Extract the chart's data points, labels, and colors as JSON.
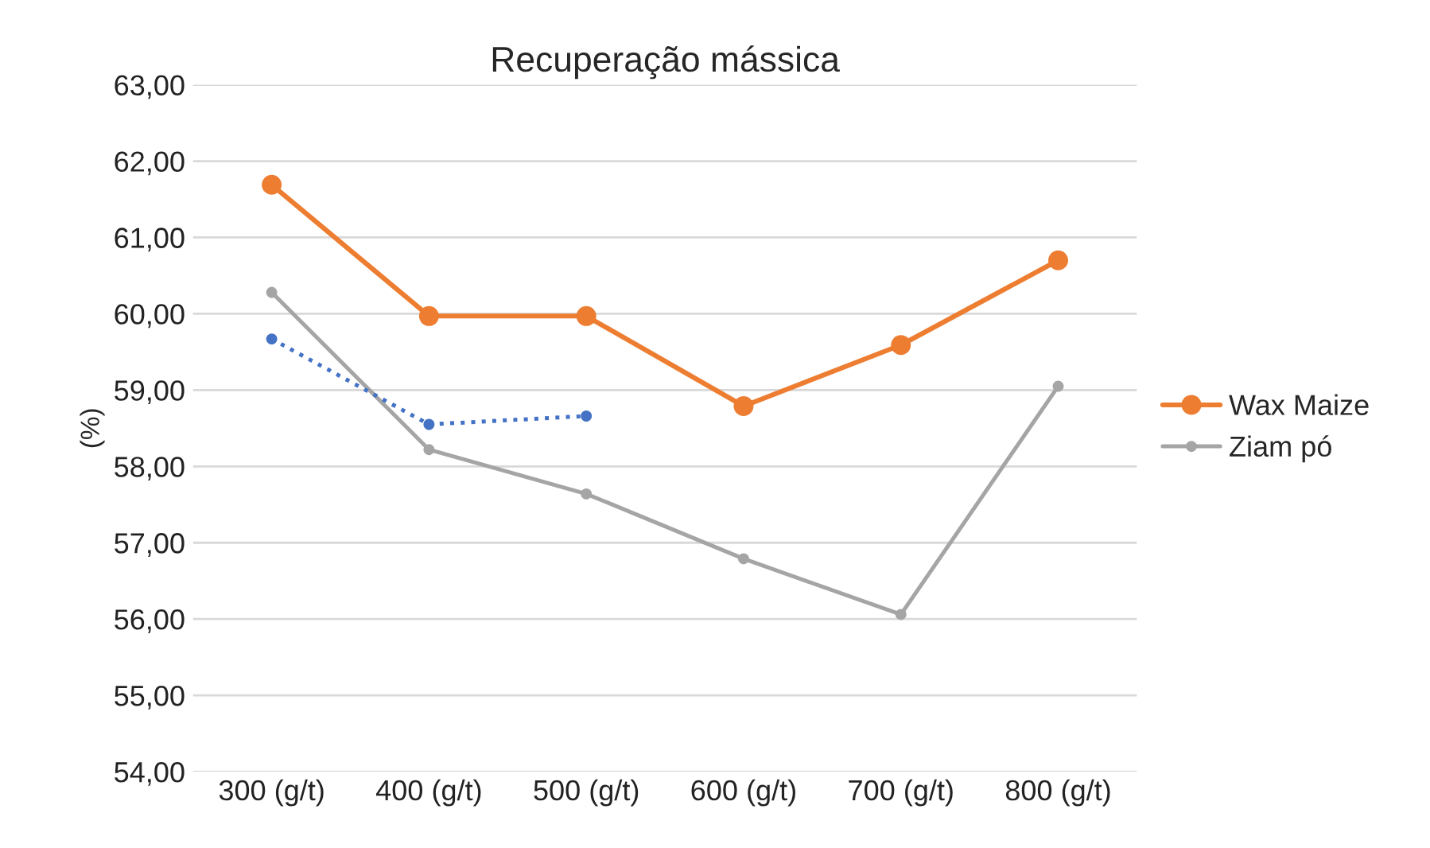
{
  "chart_data": {
    "type": "line",
    "title": "Recuperação mássica",
    "ylabel": "(%)",
    "categories": [
      "300 (g/t)",
      "400 (g/t)",
      "500 (g/t)",
      "600 (g/t)",
      "700 (g/t)",
      "800 (g/t)"
    ],
    "series": [
      {
        "name": "Wax Maize",
        "color": "#ed7d31",
        "line_style": "solid",
        "values": [
          61.69,
          59.97,
          59.97,
          58.79,
          59.59,
          60.7
        ]
      },
      {
        "name": "Ziam pó",
        "color": "#a5a5a5",
        "line_style": "solid",
        "values": [
          60.28,
          58.22,
          57.64,
          56.79,
          56.06,
          59.05
        ]
      },
      {
        "color": "#4472c4",
        "line_style": "dotted",
        "values": [
          59.67,
          58.55,
          58.66,
          null,
          null,
          null
        ]
      }
    ],
    "ylim": [
      54,
      63
    ],
    "yticks": [
      {
        "value": 54,
        "label": "54,00"
      },
      {
        "value": 55,
        "label": "55,00"
      },
      {
        "value": 56,
        "label": "56,00"
      },
      {
        "value": 57,
        "label": "57,00"
      },
      {
        "value": 58,
        "label": "58,00"
      },
      {
        "value": 59,
        "label": "59,00"
      },
      {
        "value": 60,
        "label": "60,00"
      },
      {
        "value": 61,
        "label": "61,00"
      },
      {
        "value": 62,
        "label": "62,00"
      },
      {
        "value": 63,
        "label": "63,00"
      }
    ],
    "grid": "y",
    "legend": "right",
    "marker": "circle"
  }
}
